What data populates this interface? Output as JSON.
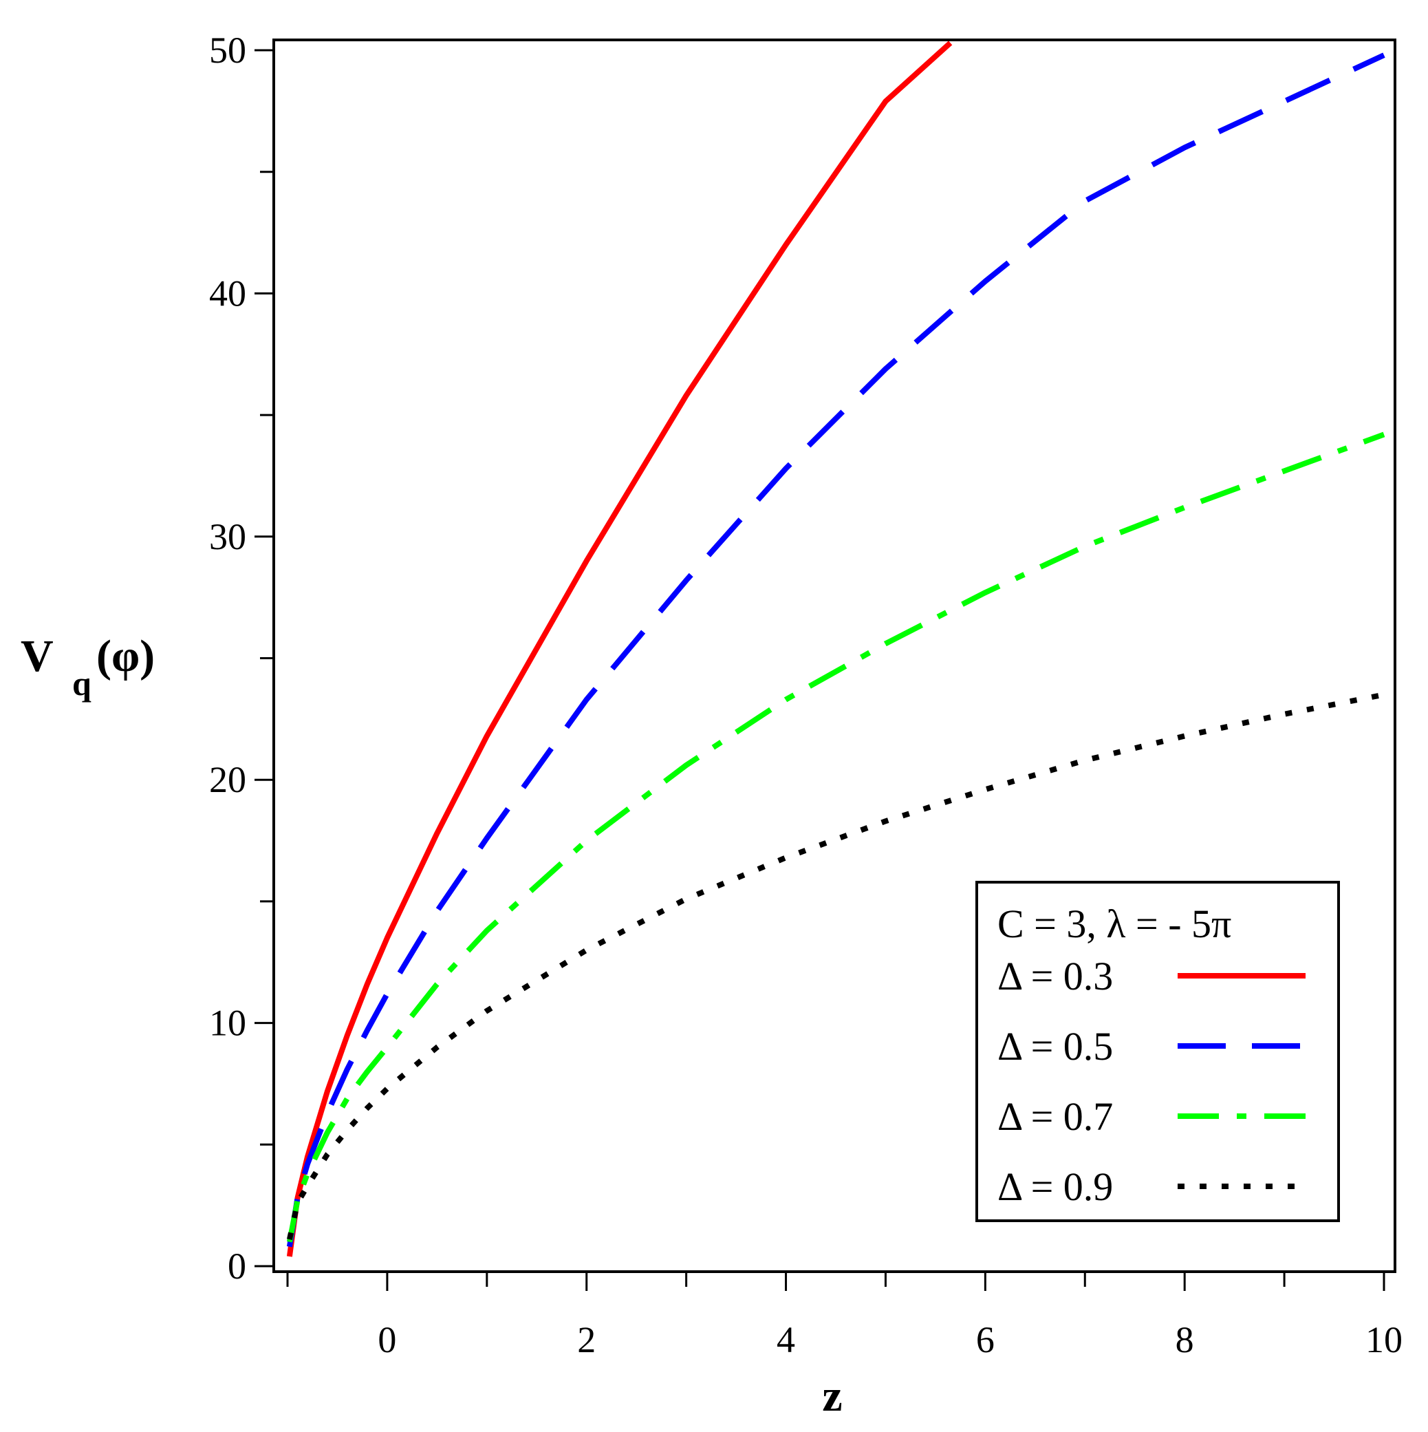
{
  "chart_data": {
    "type": "line",
    "xlabel": "z",
    "ylabel_main": "V",
    "ylabel_sub": "q",
    "ylabel_suffix": "(φ)",
    "xlim": [
      -1,
      10
    ],
    "ylim": [
      0,
      50
    ],
    "xticks": [
      0,
      2,
      4,
      6,
      8,
      10
    ],
    "yticks": [
      0,
      10,
      20,
      30,
      40,
      50
    ],
    "grid": false,
    "legend_position": "bottom-right",
    "legend_title": "C = 3, λ = - 5π",
    "series": [
      {
        "name": "Δ = 0.3",
        "color": "#ff0000",
        "dash": "solid",
        "points": [
          [
            -0.98,
            0.4
          ],
          [
            -0.9,
            2.8
          ],
          [
            -0.8,
            4.5
          ],
          [
            -0.6,
            7.2
          ],
          [
            -0.4,
            9.5
          ],
          [
            -0.2,
            11.6
          ],
          [
            0,
            13.5
          ],
          [
            0.5,
            17.8
          ],
          [
            1,
            21.8
          ],
          [
            2,
            29.0
          ],
          [
            3,
            35.8
          ],
          [
            4,
            42.0
          ],
          [
            5,
            47.9
          ],
          [
            5.65,
            50.3
          ]
        ]
      },
      {
        "name": "Δ = 0.5",
        "color": "#0000ff",
        "dash": "long-dash",
        "points": [
          [
            -0.98,
            0.8
          ],
          [
            -0.9,
            2.8
          ],
          [
            -0.8,
            4.2
          ],
          [
            -0.6,
            6.3
          ],
          [
            -0.4,
            8.1
          ],
          [
            -0.2,
            9.7
          ],
          [
            0,
            11.2
          ],
          [
            0.5,
            14.6
          ],
          [
            1,
            17.6
          ],
          [
            2,
            23.3
          ],
          [
            3,
            28.2
          ],
          [
            4,
            32.8
          ],
          [
            5,
            36.9
          ],
          [
            6,
            40.5
          ],
          [
            7,
            43.8
          ],
          [
            8,
            46.0
          ],
          [
            9,
            47.9
          ],
          [
            10,
            49.8
          ]
        ]
      },
      {
        "name": "Δ = 0.7",
        "color": "#00ff00",
        "dash": "dash-dot",
        "points": [
          [
            -0.98,
            1.0
          ],
          [
            -0.9,
            2.7
          ],
          [
            -0.8,
            3.8
          ],
          [
            -0.6,
            5.5
          ],
          [
            -0.4,
            6.9
          ],
          [
            -0.2,
            8.0
          ],
          [
            0,
            9.0
          ],
          [
            0.5,
            11.6
          ],
          [
            1,
            13.8
          ],
          [
            2,
            17.5
          ],
          [
            3,
            20.6
          ],
          [
            4,
            23.3
          ],
          [
            5,
            25.6
          ],
          [
            6,
            27.7
          ],
          [
            7,
            29.6
          ],
          [
            8,
            31.2
          ],
          [
            9,
            32.7
          ],
          [
            10,
            34.2
          ]
        ]
      },
      {
        "name": "Δ = 0.9",
        "color": "#000000",
        "dash": "dotted",
        "points": [
          [
            -0.98,
            1.1
          ],
          [
            -0.9,
            2.6
          ],
          [
            -0.8,
            3.3
          ],
          [
            -0.6,
            4.6
          ],
          [
            -0.4,
            5.6
          ],
          [
            -0.2,
            6.5
          ],
          [
            0,
            7.3
          ],
          [
            0.5,
            9.0
          ],
          [
            1,
            10.5
          ],
          [
            2,
            13.0
          ],
          [
            3,
            15.1
          ],
          [
            4,
            16.8
          ],
          [
            5,
            18.3
          ],
          [
            6,
            19.6
          ],
          [
            7,
            20.8
          ],
          [
            8,
            21.8
          ],
          [
            9,
            22.7
          ],
          [
            10,
            23.5
          ]
        ]
      }
    ]
  }
}
